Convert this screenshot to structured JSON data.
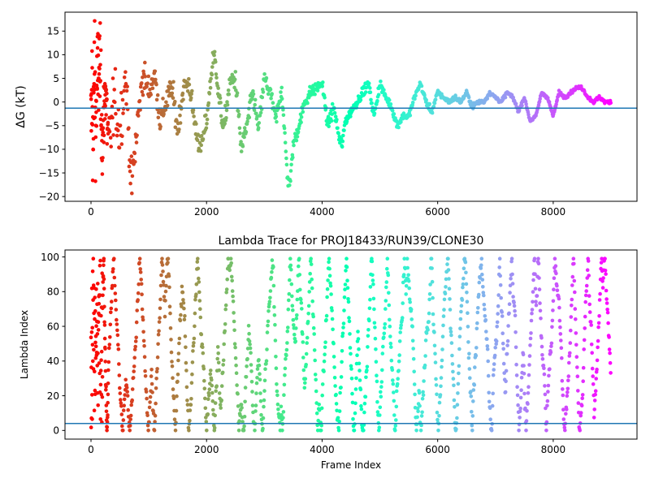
{
  "chart_data": [
    {
      "type": "scatter",
      "title": "",
      "xlabel": "",
      "ylabel": "ΔG (kT)",
      "xlim": [
        -450,
        9450
      ],
      "ylim": [
        -21,
        19
      ],
      "xticks": [
        0,
        2000,
        4000,
        6000,
        8000
      ],
      "yticks": [
        -20,
        -15,
        -10,
        -5,
        0,
        5,
        10,
        15
      ],
      "xtick_labels": [
        "0",
        "2000",
        "4000",
        "6000",
        "8000"
      ],
      "ytick_labels": [
        "−20",
        "−15",
        "−10",
        "−5",
        "0",
        "5",
        "10",
        "15"
      ],
      "colormap": "rainbow (red at frame 0 → violet at frame 9000)",
      "reference_line": {
        "y": -1.3,
        "color": "#1f77b4"
      },
      "series_trend": {
        "x": [
          0,
          20,
          40,
          60,
          80,
          100,
          150,
          200,
          250,
          300,
          400,
          500,
          600,
          700,
          750,
          800,
          900,
          1000,
          1100,
          1200,
          1300,
          1400,
          1500,
          1600,
          1700,
          1800,
          1900,
          2000,
          2100,
          2150,
          2200,
          2300,
          2400,
          2500,
          2600,
          2700,
          2800,
          2900,
          3000,
          3100,
          3200,
          3300,
          3400,
          3450,
          3500,
          3600,
          3700,
          3800,
          3900,
          4000,
          4100,
          4200,
          4300,
          4350,
          4400,
          4500,
          4600,
          4700,
          4800,
          4900,
          5000,
          5100,
          5200,
          5300,
          5400,
          5500,
          5600,
          5700,
          5800,
          5900,
          6000,
          6100,
          6200,
          6300,
          6400,
          6500,
          6600,
          6700,
          6800,
          6900,
          7000,
          7100,
          7200,
          7300,
          7400,
          7500,
          7600,
          7700,
          7800,
          7900,
          8000,
          8100,
          8200,
          8300,
          8400,
          8500,
          8600,
          8700,
          8800,
          8900,
          9000
        ],
        "y": [
          -8,
          5,
          -12,
          10,
          -6,
          3,
          8,
          -9,
          4,
          -10,
          0,
          -6,
          6,
          -18,
          -12,
          -5,
          6,
          2,
          6,
          -4,
          0,
          3,
          -6,
          3,
          4,
          -5,
          -10,
          -4,
          8,
          10,
          2,
          -6,
          4,
          5,
          -10,
          -5,
          2,
          -6,
          5,
          2,
          -4,
          3,
          -16,
          -17,
          -9,
          -5,
          0,
          2,
          3,
          4,
          -5,
          -1,
          -8,
          -9,
          -4,
          -2,
          0,
          2,
          4,
          -3,
          4,
          1,
          -1,
          -5,
          -3,
          -3,
          1,
          4,
          0,
          -2,
          2,
          1,
          0,
          1,
          0,
          2,
          -1,
          0,
          0,
          2,
          1,
          0,
          2,
          1,
          -2,
          1,
          -4,
          -3,
          2,
          1,
          -3,
          2,
          1,
          2,
          3,
          3,
          1,
          0,
          1,
          0,
          0
        ]
      },
      "series_spread": {
        "x": [
          0,
          100,
          200,
          500,
          700,
          900,
          1200,
          1600,
          2000,
          2500,
          3000,
          3500,
          4000,
          4500,
          5000,
          5500,
          6000,
          6500,
          7000,
          7500,
          8000,
          8500,
          9000
        ],
        "y": [
          12,
          10,
          7,
          5,
          4,
          3,
          2.5,
          2.2,
          2,
          1.8,
          1.6,
          1.3,
          1.1,
          0.9,
          0.8,
          0.6,
          0.5,
          0.4,
          0.35,
          0.3,
          0.3,
          0.3,
          0.3
        ]
      }
    },
    {
      "type": "scatter",
      "title": "Lambda Trace for PROJ18433/RUN39/CLONE30",
      "xlabel": "Frame Index",
      "ylabel": "Lambda Index",
      "xlim": [
        -450,
        9450
      ],
      "ylim": [
        -5,
        104
      ],
      "xticks": [
        0,
        2000,
        4000,
        6000,
        8000
      ],
      "yticks": [
        0,
        20,
        40,
        60,
        80,
        100
      ],
      "xtick_labels": [
        "0",
        "2000",
        "4000",
        "6000",
        "8000"
      ],
      "ytick_labels": [
        "0",
        "20",
        "40",
        "60",
        "80",
        "100"
      ],
      "colormap": "rainbow (red at frame 0 → violet at frame 9000)",
      "reference_line": {
        "y": 4,
        "color": "#1f77b4"
      },
      "values_range": [
        0,
        99
      ]
    }
  ]
}
